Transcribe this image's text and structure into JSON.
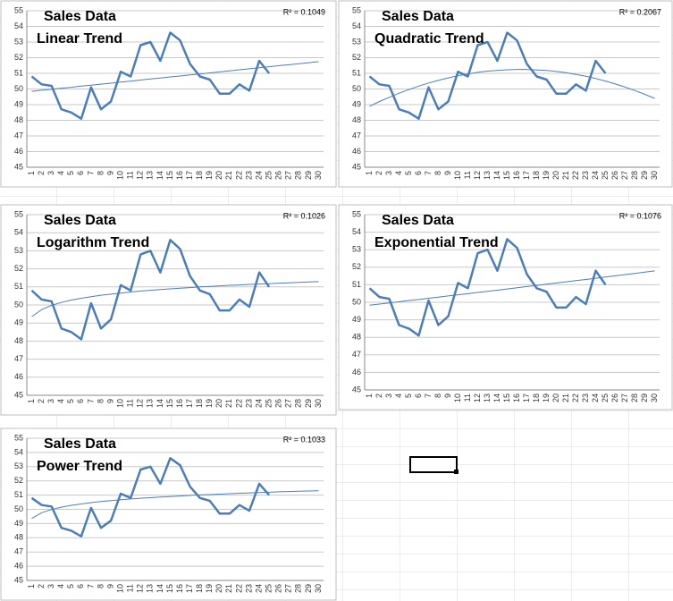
{
  "chart_data": [
    {
      "type": "line",
      "title": "Sales Data",
      "subtitle": "Linear Trend",
      "annotation": "R² = 0.1049",
      "categories": [
        1,
        2,
        3,
        4,
        5,
        6,
        7,
        8,
        9,
        10,
        11,
        12,
        13,
        14,
        15,
        16,
        17,
        18,
        19,
        20,
        21,
        22,
        23,
        24,
        25,
        26,
        27,
        28,
        29,
        30
      ],
      "series": [
        {
          "color": "#4a7ebb",
          "line_width": 2.5,
          "values": [
            50.8,
            50.3,
            50.2,
            48.7,
            48.5,
            48.1,
            50.1,
            48.7,
            49.2,
            51.1,
            50.8,
            52.8,
            53.0,
            51.8,
            53.6,
            53.1,
            51.6,
            50.8,
            50.6,
            49.7,
            49.7,
            50.3,
            49.9,
            51.8,
            51.0,
            null,
            null,
            null,
            null,
            null
          ]
        },
        {
          "color": "#4a7ebb",
          "line_width": 1,
          "values": [
            49.85,
            49.92,
            49.98,
            50.05,
            50.11,
            50.18,
            50.24,
            50.31,
            50.37,
            50.44,
            50.5,
            50.57,
            50.64,
            50.7,
            50.77,
            50.83,
            50.9,
            50.96,
            51.03,
            51.09,
            51.16,
            51.23,
            51.29,
            51.36,
            51.42,
            51.49,
            51.55,
            51.62,
            51.68,
            51.75
          ]
        }
      ],
      "ylim": [
        45,
        55
      ],
      "yticks": [
        45,
        46,
        47,
        48,
        49,
        50,
        51,
        52,
        53,
        54,
        55
      ],
      "grid": true
    },
    {
      "type": "line",
      "title": "Sales Data",
      "subtitle": "Quadratic Trend",
      "annotation": "R² = 0.2067",
      "categories": [
        1,
        2,
        3,
        4,
        5,
        6,
        7,
        8,
        9,
        10,
        11,
        12,
        13,
        14,
        15,
        16,
        17,
        18,
        19,
        20,
        21,
        22,
        23,
        24,
        25,
        26,
        27,
        28,
        29,
        30
      ],
      "series": [
        {
          "color": "#4a7ebb",
          "line_width": 2.5,
          "values": [
            50.8,
            50.3,
            50.2,
            48.7,
            48.5,
            48.1,
            50.1,
            48.7,
            49.2,
            51.1,
            50.8,
            52.8,
            53.0,
            51.8,
            53.6,
            53.1,
            51.6,
            50.8,
            50.6,
            49.7,
            49.7,
            50.3,
            49.9,
            51.8,
            51.0,
            null,
            null,
            null,
            null,
            null
          ]
        },
        {
          "color": "#4a7ebb",
          "line_width": 1,
          "values": [
            48.9,
            49.2,
            49.47,
            49.73,
            49.96,
            50.18,
            50.38,
            50.55,
            50.71,
            50.85,
            50.96,
            51.06,
            51.14,
            51.19,
            51.23,
            51.25,
            51.25,
            51.22,
            51.18,
            51.12,
            51.04,
            50.93,
            50.81,
            50.67,
            50.51,
            50.32,
            50.12,
            49.9,
            49.66,
            49.4
          ]
        }
      ],
      "ylim": [
        45,
        55
      ],
      "yticks": [
        45,
        46,
        47,
        48,
        49,
        50,
        51,
        52,
        53,
        54,
        55
      ],
      "grid": true
    },
    {
      "type": "line",
      "title": "Sales Data",
      "subtitle": "Logarithm Trend",
      "annotation": "R² = 0.1026",
      "categories": [
        1,
        2,
        3,
        4,
        5,
        6,
        7,
        8,
        9,
        10,
        11,
        12,
        13,
        14,
        15,
        16,
        17,
        18,
        19,
        20,
        21,
        22,
        23,
        24,
        25,
        26,
        27,
        28,
        29,
        30
      ],
      "series": [
        {
          "color": "#4a7ebb",
          "line_width": 2.5,
          "values": [
            50.8,
            50.3,
            50.2,
            48.7,
            48.5,
            48.1,
            50.1,
            48.7,
            49.2,
            51.1,
            50.8,
            52.8,
            53.0,
            51.8,
            53.6,
            53.1,
            51.6,
            50.8,
            50.6,
            49.7,
            49.7,
            50.3,
            49.9,
            51.8,
            51.0,
            null,
            null,
            null,
            null,
            null
          ]
        },
        {
          "color": "#4a7ebb",
          "line_width": 1,
          "values": [
            49.35,
            49.75,
            49.98,
            50.14,
            50.27,
            50.37,
            50.46,
            50.54,
            50.6,
            50.66,
            50.72,
            50.77,
            50.81,
            50.85,
            50.89,
            50.93,
            50.96,
            51.0,
            51.03,
            51.06,
            51.09,
            51.11,
            51.14,
            51.16,
            51.18,
            51.21,
            51.23,
            51.25,
            51.27,
            51.29
          ]
        }
      ],
      "ylim": [
        45,
        55
      ],
      "yticks": [
        45,
        46,
        47,
        48,
        49,
        50,
        51,
        52,
        53,
        54,
        55
      ],
      "grid": true
    },
    {
      "type": "line",
      "title": "Sales Data",
      "subtitle": "Exponential Trend",
      "annotation": "R² = 0.1076",
      "categories": [
        1,
        2,
        3,
        4,
        5,
        6,
        7,
        8,
        9,
        10,
        11,
        12,
        13,
        14,
        15,
        16,
        17,
        18,
        19,
        20,
        21,
        22,
        23,
        24,
        25,
        26,
        27,
        28,
        29,
        30
      ],
      "series": [
        {
          "color": "#4a7ebb",
          "line_width": 2.5,
          "values": [
            50.8,
            50.3,
            50.2,
            48.7,
            48.5,
            48.1,
            50.1,
            48.7,
            49.2,
            51.1,
            50.8,
            52.8,
            53.0,
            51.8,
            53.6,
            53.1,
            51.6,
            50.8,
            50.6,
            49.7,
            49.7,
            50.3,
            49.9,
            51.8,
            51.0,
            null,
            null,
            null,
            null,
            null
          ]
        },
        {
          "color": "#4a7ebb",
          "line_width": 1,
          "values": [
            49.83,
            49.9,
            49.96,
            50.03,
            50.1,
            50.16,
            50.23,
            50.29,
            50.36,
            50.43,
            50.49,
            50.56,
            50.63,
            50.69,
            50.76,
            50.83,
            50.9,
            50.96,
            51.03,
            51.1,
            51.17,
            51.24,
            51.3,
            51.37,
            51.44,
            51.51,
            51.58,
            51.65,
            51.72,
            51.79
          ]
        }
      ],
      "ylim": [
        45,
        55
      ],
      "yticks": [
        45,
        46,
        47,
        48,
        49,
        50,
        51,
        52,
        53,
        54,
        55
      ],
      "grid": true
    },
    {
      "type": "line",
      "title": "Sales Data",
      "subtitle": "Power Trend",
      "annotation": "R² = 0.1033",
      "categories": [
        1,
        2,
        3,
        4,
        5,
        6,
        7,
        8,
        9,
        10,
        11,
        12,
        13,
        14,
        15,
        16,
        17,
        18,
        19,
        20,
        21,
        22,
        23,
        24,
        25,
        26,
        27,
        28,
        29,
        30
      ],
      "series": [
        {
          "color": "#4a7ebb",
          "line_width": 2.5,
          "values": [
            50.8,
            50.3,
            50.2,
            48.7,
            48.5,
            48.1,
            50.1,
            48.7,
            49.2,
            51.1,
            50.8,
            52.8,
            53.0,
            51.8,
            53.6,
            53.1,
            51.6,
            50.8,
            50.6,
            49.7,
            49.7,
            50.3,
            49.9,
            51.8,
            51.0,
            null,
            null,
            null,
            null,
            null
          ]
        },
        {
          "color": "#4a7ebb",
          "line_width": 1,
          "values": [
            49.36,
            49.76,
            49.99,
            50.15,
            50.28,
            50.38,
            50.47,
            50.55,
            50.61,
            50.67,
            50.73,
            50.78,
            50.82,
            50.87,
            50.9,
            50.94,
            50.98,
            51.01,
            51.04,
            51.07,
            51.1,
            51.13,
            51.16,
            51.18,
            51.2,
            51.23,
            51.25,
            51.27,
            51.29,
            51.31
          ]
        }
      ],
      "ylim": [
        45,
        55
      ],
      "yticks": [
        45,
        46,
        47,
        48,
        49,
        50,
        51,
        52,
        53,
        54,
        55
      ],
      "grid": true
    }
  ]
}
